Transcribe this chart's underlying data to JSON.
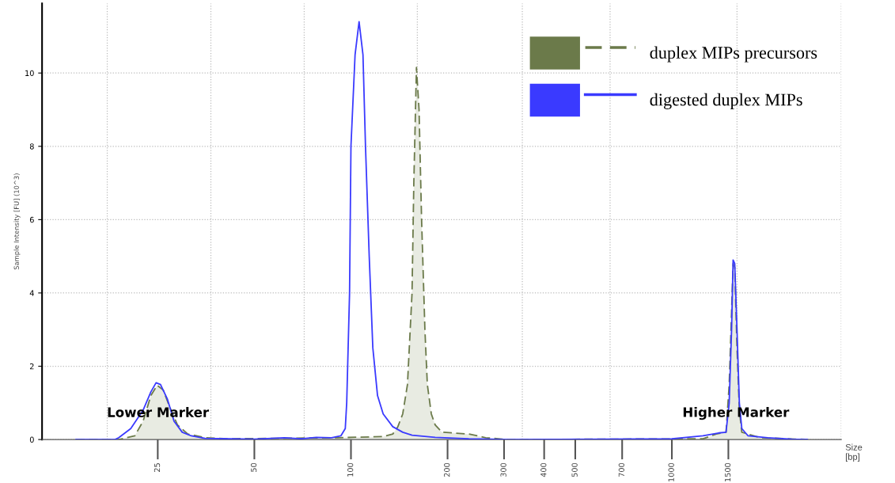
{
  "chart_data": {
    "type": "line",
    "xlabel": "Size\n[bp]",
    "ylabel": "Sample Intensity [FU] (10^3)",
    "log": "x",
    "xlim": [
      10.9,
      3373
    ],
    "ylim": [
      0,
      11.9
    ],
    "xticks": [
      {
        "value": 17.4,
        "label": null
      },
      25,
      {
        "value": 36.6,
        "label": null
      },
      50,
      {
        "value": 71.5,
        "label": null
      },
      100,
      {
        "value": 161,
        "label": null
      },
      200,
      300,
      {
        "value": 342,
        "label": null
      },
      400,
      500,
      {
        "value": 642,
        "label": null
      },
      700,
      1000,
      1500,
      {
        "value": 1596,
        "label": null
      },
      {
        "value": 3373,
        "label": null
      }
    ],
    "yticks": [
      0,
      2,
      4,
      6,
      8,
      10
    ],
    "grid": true,
    "legend": "top right",
    "series": [
      {
        "name": "duplex MIPs precursors",
        "type": "area",
        "color": "#6b7a4a",
        "line_style": "dashed",
        "x": [
          13.9,
          18.9,
          21.2,
          22.5,
          23.8,
          24.9,
          26.0,
          27.2,
          28.8,
          31.0,
          35.1,
          41.7,
          91,
          126,
          135,
          140,
          145,
          150,
          155,
          157,
          160,
          163,
          166,
          170,
          173,
          178,
          183,
          192,
          233,
          263,
          309,
          1250,
          1375,
          1475,
          1509,
          1535,
          1552,
          1570,
          1596,
          1623,
          1652,
          1883,
          2644
        ],
        "values": [
          0,
          0,
          0.1,
          0.5,
          1.2,
          1.48,
          1.35,
          0.9,
          0.4,
          0.15,
          0.05,
          0.02,
          0.05,
          0.08,
          0.15,
          0.35,
          0.7,
          1.5,
          4,
          7,
          10.15,
          9,
          6,
          3,
          1.5,
          0.7,
          0.4,
          0.2,
          0.15,
          0.05,
          0,
          0.02,
          0.15,
          0.2,
          1.5,
          3.5,
          4.8,
          4.7,
          2.5,
          0.8,
          0.2,
          0.05,
          0
        ]
      },
      {
        "name": "digested duplex MIPs",
        "color": "#3a3aff",
        "line_style": "solid",
        "x": [
          13.9,
          18.4,
          18.9,
          20.6,
          22.5,
          23.8,
          24.7,
          25.5,
          26.8,
          28.1,
          29.8,
          31.8,
          35.1,
          41.7,
          50,
          62,
          70,
          78,
          87,
          93,
          96,
          97,
          99,
          100,
          103,
          106,
          109,
          111,
          114,
          117,
          121,
          126,
          135,
          145,
          155,
          183,
          233,
          309,
          1000,
          1250,
          1400,
          1475,
          1509,
          1535,
          1552,
          1570,
          1596,
          1623,
          1652,
          1728,
          1991,
          2361,
          2644
        ],
        "values": [
          0,
          0,
          0.05,
          0.3,
          0.8,
          1.3,
          1.55,
          1.5,
          1.1,
          0.5,
          0.2,
          0.1,
          0.03,
          0.02,
          0.01,
          0.05,
          0.02,
          0.06,
          0.05,
          0.1,
          0.3,
          1,
          4,
          8,
          10.5,
          11.4,
          10.5,
          8,
          5,
          2.5,
          1.2,
          0.7,
          0.35,
          0.2,
          0.12,
          0.06,
          0.02,
          0,
          0.02,
          0.1,
          0.18,
          0.2,
          1,
          3,
          4.9,
          4.8,
          3,
          1,
          0.3,
          0.1,
          0.05,
          0.01,
          0
        ]
      }
    ],
    "annotations": [
      "Lower Marker",
      "Higher Marker"
    ]
  }
}
